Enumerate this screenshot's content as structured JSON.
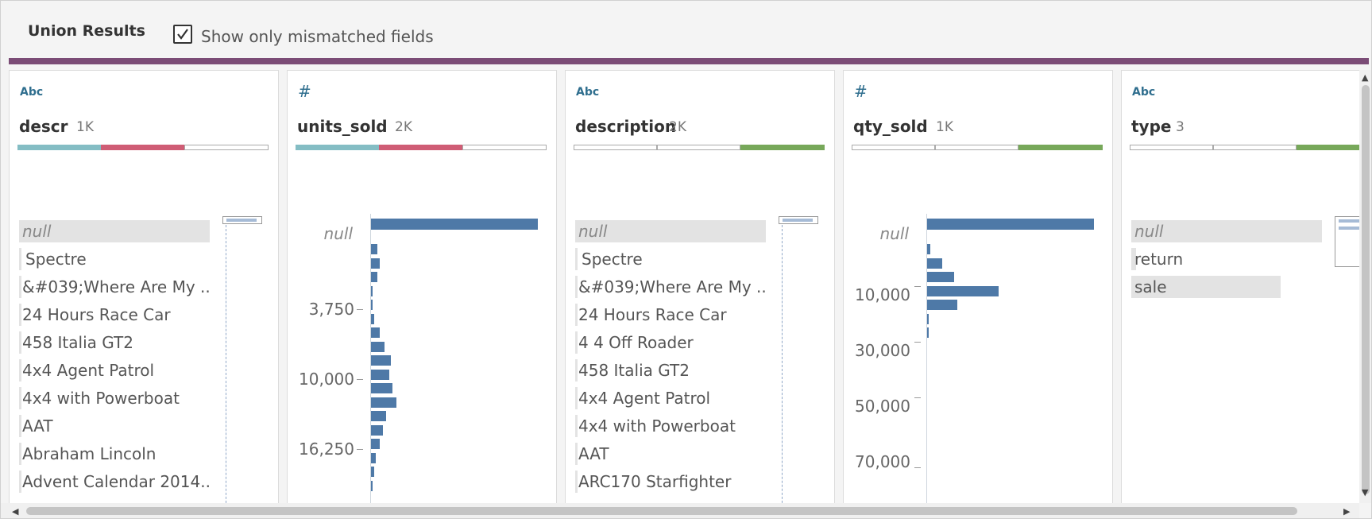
{
  "header": {
    "title": "Union Results",
    "checkbox_label": "Show only mismatched fields",
    "checkbox_checked": true
  },
  "colors": {
    "accent_bar": "#7b4c76",
    "teal": "#84bdc4",
    "red": "#cf5d75",
    "green": "#77a85a",
    "histogram_bar": "#4e79a7"
  },
  "cards": [
    {
      "type_icon": "Abc",
      "name": "descr",
      "count": "1K",
      "segments": [
        "teal",
        "red",
        "empty"
      ],
      "values": [
        "null",
        "Spectre",
        "&#039;Where Are My ...",
        "24 Hours Race Car",
        "458 Italia GT2",
        "4x4 Agent Patrol",
        "4x4 with Powerboat",
        "AAT",
        "Abraham Lincoln",
        "Advent Calendar 2014..."
      ]
    },
    {
      "type_icon": "#",
      "name": "units_sold",
      "count": "2K",
      "segments": [
        "teal",
        "red",
        "empty"
      ],
      "histogram": {
        "null_label": "null",
        "tick_labels": [
          "3,750",
          "10,000",
          "16,250"
        ],
        "bars_relative_length": [
          1.0,
          0.04,
          0.05,
          0.04,
          0.01,
          0.01,
          0.02,
          0.05,
          0.08,
          0.12,
          0.11,
          0.13,
          0.15,
          0.09,
          0.07,
          0.05,
          0.03,
          0.02,
          0.01
        ]
      }
    },
    {
      "type_icon": "Abc",
      "name": "description",
      "count": "2K",
      "segments": [
        "empty",
        "empty",
        "green"
      ],
      "values": [
        "null",
        "Spectre",
        "&#039;Where Are My ...",
        "24 Hours Race Car",
        "4 4 Off Roader",
        "458 Italia GT2",
        "4x4 Agent Patrol",
        "4x4 with Powerboat",
        "AAT",
        "ARC170 Starfighter"
      ]
    },
    {
      "type_icon": "#",
      "name": "qty_sold",
      "count": "1K",
      "segments": [
        "empty",
        "empty",
        "green"
      ],
      "histogram": {
        "null_label": "null",
        "tick_labels": [
          "10,000",
          "30,000",
          "50,000",
          "70,000"
        ],
        "bars_relative_length": [
          1.0,
          0.02,
          0.09,
          0.16,
          0.43,
          0.18,
          0.01,
          0.01
        ]
      }
    },
    {
      "type_icon": "Abc",
      "name": "type",
      "count": "3",
      "segments": [
        "empty",
        "empty",
        "green"
      ],
      "values": [
        "null",
        "return",
        "sale"
      ],
      "value_bars_relative": [
        1.0,
        0.0,
        0.88
      ]
    }
  ]
}
